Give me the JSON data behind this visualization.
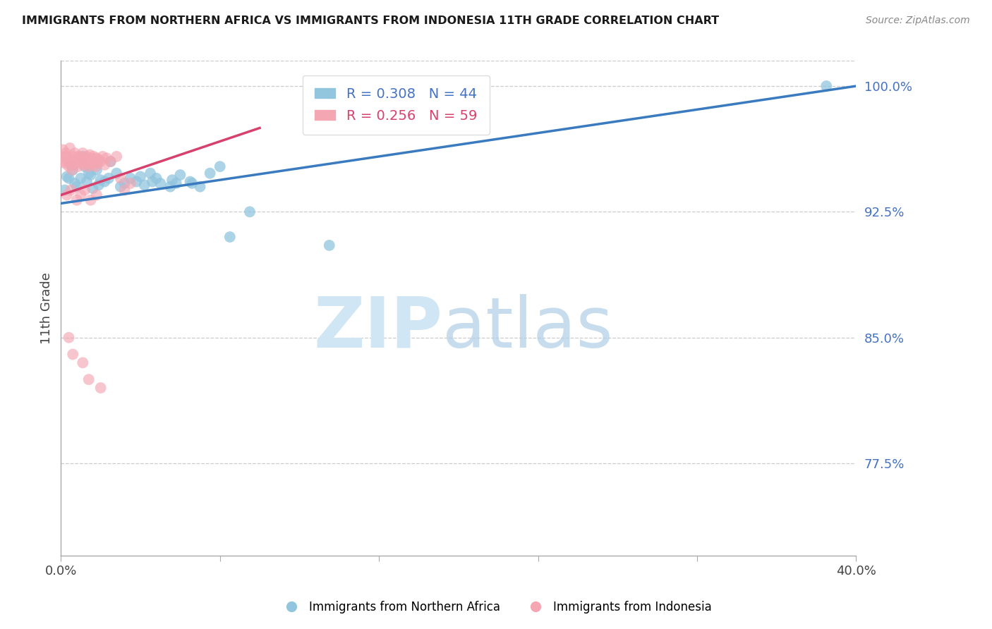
{
  "title": "IMMIGRANTS FROM NORTHERN AFRICA VS IMMIGRANTS FROM INDONESIA 11TH GRADE CORRELATION CHART",
  "source": "Source: ZipAtlas.com",
  "ylabel": "11th Grade",
  "y_ticks": [
    77.5,
    85.0,
    92.5,
    100.0
  ],
  "y_tick_labels": [
    "77.5%",
    "85.0%",
    "92.5%",
    "100.0%"
  ],
  "xmin": 0.0,
  "xmax": 40.0,
  "ymin": 72.0,
  "ymax": 101.5,
  "blue_color": "#92c5de",
  "pink_color": "#f4a6b2",
  "blue_line_color": "#3a7bbf",
  "pink_line_color": "#d6416e",
  "blue_R": 0.308,
  "blue_N": 44,
  "pink_R": 0.256,
  "pink_N": 59,
  "blue_line_x0": 0.0,
  "blue_line_y0": 93.0,
  "blue_line_x1": 40.0,
  "blue_line_y1": 100.0,
  "pink_line_x0": 0.0,
  "pink_line_y0": 93.5,
  "pink_line_x1": 10.0,
  "pink_line_y1": 97.5,
  "blue_scatter_x": [
    0.2,
    0.3,
    0.4,
    0.5,
    0.6,
    0.7,
    0.8,
    1.0,
    1.1,
    1.2,
    1.3,
    1.4,
    1.5,
    1.6,
    1.8,
    1.9,
    2.0,
    2.2,
    2.4,
    2.5,
    2.8,
    3.0,
    3.2,
    3.5,
    3.8,
    4.0,
    4.2,
    4.5,
    4.6,
    4.8,
    5.0,
    5.5,
    5.6,
    5.8,
    6.0,
    6.5,
    6.6,
    7.0,
    7.5,
    8.0,
    8.5,
    9.5,
    13.5,
    38.5
  ],
  "blue_scatter_y": [
    93.8,
    94.6,
    94.5,
    95.3,
    95.0,
    94.2,
    94.0,
    94.5,
    95.8,
    95.2,
    94.3,
    94.8,
    94.7,
    93.9,
    95.0,
    94.1,
    94.4,
    94.3,
    94.5,
    95.5,
    94.8,
    94.0,
    94.2,
    94.5,
    94.3,
    94.6,
    94.1,
    94.8,
    94.3,
    94.5,
    94.2,
    94.0,
    94.4,
    94.2,
    94.7,
    94.3,
    94.2,
    94.0,
    94.8,
    95.2,
    91.0,
    92.5,
    90.5,
    100.0
  ],
  "pink_scatter_x": [
    0.05,
    0.1,
    0.15,
    0.2,
    0.25,
    0.3,
    0.35,
    0.4,
    0.45,
    0.5,
    0.55,
    0.6,
    0.65,
    0.7,
    0.75,
    0.8,
    0.85,
    0.9,
    0.95,
    1.0,
    1.05,
    1.1,
    1.15,
    1.2,
    1.25,
    1.3,
    1.35,
    1.4,
    1.45,
    1.5,
    1.55,
    1.6,
    1.65,
    1.7,
    1.75,
    1.8,
    1.85,
    1.9,
    2.0,
    2.1,
    2.2,
    2.3,
    2.5,
    2.8,
    3.0,
    3.2,
    3.5,
    0.3,
    0.5,
    0.8,
    1.0,
    1.2,
    1.5,
    1.8,
    0.4,
    0.6,
    1.1,
    1.4,
    2.0
  ],
  "pink_scatter_y": [
    95.5,
    96.2,
    95.8,
    95.4,
    96.0,
    95.8,
    95.5,
    95.2,
    96.3,
    95.6,
    95.0,
    95.8,
    95.3,
    96.0,
    95.5,
    95.8,
    95.2,
    95.7,
    95.4,
    95.8,
    95.5,
    96.0,
    95.3,
    95.7,
    95.4,
    95.8,
    95.2,
    95.6,
    95.9,
    95.4,
    95.7,
    95.3,
    95.8,
    95.5,
    95.2,
    95.7,
    95.4,
    95.6,
    95.5,
    95.8,
    95.3,
    95.7,
    95.5,
    95.8,
    94.5,
    93.8,
    94.2,
    93.5,
    93.8,
    93.2,
    93.5,
    93.8,
    93.2,
    93.5,
    85.0,
    84.0,
    83.5,
    82.5,
    82.0
  ]
}
